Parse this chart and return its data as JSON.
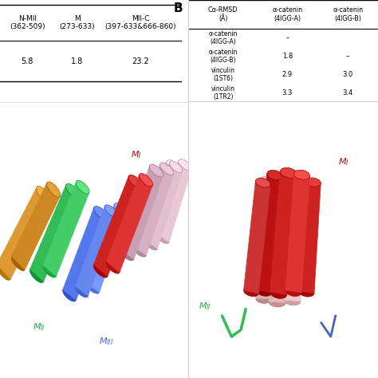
{
  "bg_color": "#ffffff",
  "panel_A_table": {
    "headers": [
      "N-MII\n(362-509)",
      "M\n(273-633)",
      "MII-C\n(397-633&666-860)"
    ],
    "values": [
      "5.8",
      "1.8",
      "23.2"
    ]
  },
  "panel_B_table": {
    "col1": "Cα-RMSD\n(Å)",
    "col2": "α-catenin\n(4IGG-A)",
    "col3": "α-catenin\n(4IGG-B)",
    "rows": [
      [
        "α-catenin\n(4IGG-A)",
        "–",
        ""
      ],
      [
        "α-catenin\n(4IGG-B)",
        "1.8",
        "–"
      ],
      [
        "vinculin\n(1ST6)",
        "2.9",
        "3.0"
      ],
      [
        "vinculin\n(1TR2)",
        "3.3",
        "3.4"
      ]
    ]
  }
}
